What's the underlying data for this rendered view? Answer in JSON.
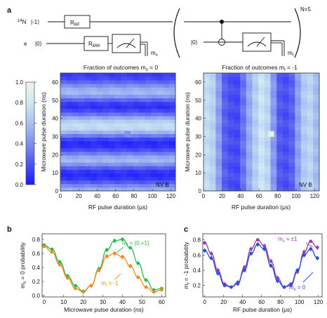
{
  "panel_labels": {
    "a": "a",
    "b": "b",
    "c": "c"
  },
  "circuit": {
    "nitrogen_prefix": "14",
    "nitrogen_label": "N",
    "nitrogen_state": "|-1⟩",
    "rf_gate_main": "R",
    "rf_gate_sub": "RF",
    "electron_label": "e",
    "electron_state": "|0⟩",
    "mw_gate_main": "R",
    "mw_gate_sub": "MW",
    "meas_electron_main": "m",
    "meas_electron_sub": "s",
    "loop_state": "|0⟩",
    "meas_nuclear_main": "m",
    "meas_nuclear_sub": "I",
    "repeat_label": "N=5"
  },
  "colorbar": {
    "ticks": [
      "0.0",
      "0.2",
      "0.4",
      "0.6",
      "0.8",
      "1.0"
    ],
    "colors": [
      "#1a1aff",
      "#4d55f0",
      "#7f8ff0",
      "#a9c2f2",
      "#cfe8f2",
      "#eef7e6"
    ]
  },
  "chart_data": [
    {
      "id": "heatmap-left",
      "type": "heatmap",
      "title_prefix": "Fraction of outcomes m",
      "title_sub": "s",
      "title_suffix": " = 0",
      "xlabel": "RF pulse duration (μs)",
      "ylabel": "Microwave pulse duration (ns)",
      "xticks": [
        0,
        20,
        40,
        60,
        80,
        100,
        120
      ],
      "yticks": [
        0,
        10,
        20,
        30,
        40,
        50,
        60
      ],
      "xlim": [
        0,
        125
      ],
      "ylim": [
        0,
        65
      ],
      "inset_label": "NV B",
      "row_values": [
        0.52,
        0.38,
        0.22,
        0.1,
        0.06,
        0.1,
        0.24,
        0.42,
        0.56,
        0.5,
        0.34,
        0.18,
        0.08,
        0.06,
        0.14,
        0.34,
        0.55,
        0.72,
        0.74,
        0.66,
        0.5,
        0.3,
        0.16,
        0.08,
        0.12,
        0.26,
        0.44,
        0.56,
        0.52,
        0.4,
        0.26,
        0.16,
        0.12
      ],
      "outlier": {
        "x": 73,
        "y": 31,
        "value": 0.4
      }
    },
    {
      "id": "heatmap-right",
      "type": "heatmap",
      "title_prefix": "Fraction of outcomes m",
      "title_sub": "I",
      "title_suffix": " = -1",
      "xlabel": "RF pulse duration (μs)",
      "ylabel": "Microwave pulse duration (ns)",
      "xticks": [
        0,
        20,
        40,
        60,
        80,
        100,
        120
      ],
      "yticks": [
        0,
        10,
        20,
        30,
        40,
        50,
        60
      ],
      "xlim": [
        0,
        125
      ],
      "ylim": [
        0,
        65
      ],
      "inset_label": "NV B",
      "col_values": [
        0.74,
        0.68,
        0.46,
        0.24,
        0.18,
        0.16,
        0.3,
        0.5,
        0.66,
        0.78,
        0.7,
        0.44,
        0.22,
        0.18,
        0.24,
        0.46,
        0.64,
        0.7,
        0.58
      ],
      "outlier": {
        "x": 73,
        "y": 31,
        "value": 0.9
      }
    },
    {
      "id": "plot-b",
      "type": "line",
      "xlabel": "Microwave pulse duration (ns)",
      "ylabel_prefix": "m",
      "ylabel_sub": "s",
      "ylabel_suffix": " = 0 probability",
      "xticks": [
        0,
        10,
        20,
        30,
        40,
        50,
        60
      ],
      "yticks": [
        "0.0",
        "0.2",
        "0.4",
        "0.6",
        "0.8"
      ],
      "xlim": [
        -1,
        62
      ],
      "ylim": [
        -0.02,
        0.88
      ],
      "series": [
        {
          "name_prefix": "m",
          "name_sub": "I",
          "name_suffix": " = {0,+1}",
          "color": "#2db84a",
          "x": [
            0,
            4,
            8,
            12,
            16,
            20,
            24,
            28,
            32,
            36,
            40,
            44,
            48,
            52,
            56,
            60
          ],
          "y": [
            0.72,
            0.66,
            0.48,
            0.28,
            0.14,
            0.06,
            0.14,
            0.38,
            0.65,
            0.78,
            0.8,
            0.68,
            0.46,
            0.22,
            0.08,
            0.1
          ],
          "err": [
            0.02,
            0.02,
            0.02,
            0.02,
            0.02,
            0.02,
            0.02,
            0.03,
            0.03,
            0.03,
            0.03,
            0.02,
            0.02,
            0.02,
            0.02,
            0.02
          ]
        },
        {
          "name_prefix": "m",
          "name_sub": "I",
          "name_suffix": " = -1",
          "color": "#f08a1a",
          "x": [
            0,
            4,
            8,
            12,
            16,
            20,
            24,
            28,
            32,
            36,
            40,
            44,
            48,
            52,
            56,
            60
          ],
          "y": [
            0.7,
            0.62,
            0.44,
            0.25,
            0.1,
            0.05,
            0.14,
            0.36,
            0.56,
            0.6,
            0.55,
            0.42,
            0.26,
            0.12,
            0.05,
            0.08
          ],
          "err": [
            0.02,
            0.02,
            0.02,
            0.02,
            0.02,
            0.02,
            0.02,
            0.03,
            0.04,
            0.04,
            0.03,
            0.03,
            0.02,
            0.02,
            0.02,
            0.02
          ]
        }
      ]
    },
    {
      "id": "plot-c",
      "type": "line",
      "xlabel": "RF pulse duration (μs)",
      "ylabel_prefix": "m",
      "ylabel_sub": "I",
      "ylabel_suffix": " = -1 probability",
      "xticks": [
        0,
        20,
        40,
        60,
        80,
        100,
        120
      ],
      "yticks": [
        "0.2",
        "0.4",
        "0.6",
        "0.8"
      ],
      "xlim": [
        -2,
        124
      ],
      "ylim": [
        0.05,
        0.88
      ],
      "series": [
        {
          "name_prefix": "m",
          "name_sub": "s",
          "name_suffix": " = ±1",
          "color": "#9b3fb0",
          "x": [
            0,
            7,
            14,
            21,
            28,
            35,
            42,
            49,
            56,
            63,
            70,
            77,
            84,
            91,
            98,
            105,
            112,
            119
          ],
          "y": [
            0.76,
            0.62,
            0.4,
            0.22,
            0.18,
            0.22,
            0.44,
            0.68,
            0.8,
            0.72,
            0.52,
            0.3,
            0.18,
            0.2,
            0.38,
            0.64,
            0.78,
            0.7
          ],
          "err": [
            0.02,
            0.03,
            0.03,
            0.02,
            0.02,
            0.02,
            0.03,
            0.03,
            0.02,
            0.03,
            0.03,
            0.03,
            0.02,
            0.02,
            0.03,
            0.03,
            0.02,
            0.03
          ]
        },
        {
          "name_prefix": "m",
          "name_sub": "s",
          "name_suffix": " = 0",
          "color": "#2b4fd8",
          "x": [
            0,
            7,
            14,
            21,
            28,
            35,
            42,
            49,
            56,
            63,
            70,
            77,
            84,
            91,
            98,
            105,
            112,
            119
          ],
          "y": [
            0.66,
            0.56,
            0.36,
            0.2,
            0.18,
            0.24,
            0.4,
            0.62,
            0.74,
            0.68,
            0.46,
            0.26,
            0.18,
            0.22,
            0.4,
            0.6,
            0.68,
            0.56
          ],
          "err": [
            0.03,
            0.03,
            0.03,
            0.02,
            0.02,
            0.03,
            0.03,
            0.03,
            0.03,
            0.03,
            0.03,
            0.03,
            0.02,
            0.02,
            0.03,
            0.03,
            0.03,
            0.03
          ]
        }
      ]
    }
  ]
}
